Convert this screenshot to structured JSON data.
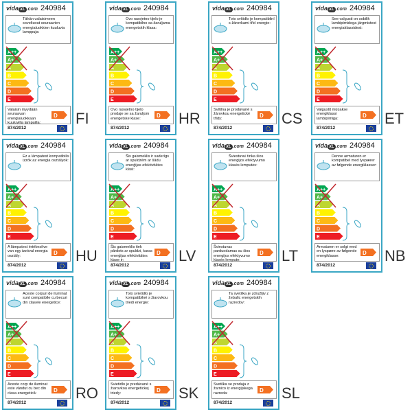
{
  "brand": {
    "pre": "vida",
    "mid": "XL",
    "post": ".com"
  },
  "code": "240984",
  "classes": [
    "A++",
    "A+",
    "A",
    "B",
    "C",
    "D",
    "E"
  ],
  "sold_class": "D",
  "regulation": "874/2012",
  "labels": [
    {
      "lang": "FI",
      "top": "Tähän valaisimeen soveltuvat seuraavien energialuokkien kuuluvia lamppuja:",
      "bottom": "Valaisin myydään seuraavan energialuokkaan kuuluvilla lampuilla:"
    },
    {
      "lang": "HR",
      "top": "Ovo rasvjetno tijelo je kompatibilno sa žaruljama energetskih klasa:",
      "bottom": "Ovo rasvjetno tijelo prodaje se sa žaruljom energetske klase:"
    },
    {
      "lang": "CS",
      "top": "Toto svítidlo je kompatibilní s žárovkami třid energie:",
      "bottom": "Svítilna je prodávané s žárovkou energetické třídy:"
    },
    {
      "lang": "ET",
      "top": "See valgusti on sobilik lambipirnidega järgmistest energiaklassidest:",
      "bottom": "Valgustit müüakse energiklassi lambipirniga:"
    },
    {
      "lang": "HU",
      "top": "Ez a lámpatest kompatibilis izzók az energia osztályok:",
      "bottom": "A lámpatest értékesítve van egy izzóval energia osztály:"
    },
    {
      "lang": "LV",
      "top": "Šis gaismeklis ir saderīgs ar spuldzēm ar šādu enerģijas efektivitātes klasi:",
      "bottom": "Šis gaismeklis tiek pārdots ar spuldzi, kuras enerģijas efektivitātes klase ir:"
    },
    {
      "lang": "LT",
      "top": "Šviestuvui tinka šios energijos efektyvumo klasės lemputės:",
      "bottom": "Šviestuvas parduodamas su šios energijos efektyvumo klasės lempute:"
    },
    {
      "lang": "NB",
      "top": "Denne armaturen er kompatibel med lyspærer av følgende energiklasser:",
      "bottom": "Armaturen er solgt med en lyspære av følgende energiklasse:"
    },
    {
      "lang": "RO",
      "top": "Aceste corpuri de iluminat sunt compatibile cu becuri din clasele energetice:",
      "bottom": "Aceste corp de iluminat este vândut cu bec din clasa energetică:"
    },
    {
      "lang": "SK",
      "top": "Toto svietidlo je kompatibilné s žiarovkou triedi energie:",
      "bottom": "Svietidlo je predávané s žiarovkou energetickej triedy:"
    },
    {
      "lang": "SL",
      "top": "Ta svetilka je združljiv z žebulic energetskih razredov:",
      "bottom": "Svetilka se prodaja z žarnico iz energijskega razreda:"
    }
  ]
}
